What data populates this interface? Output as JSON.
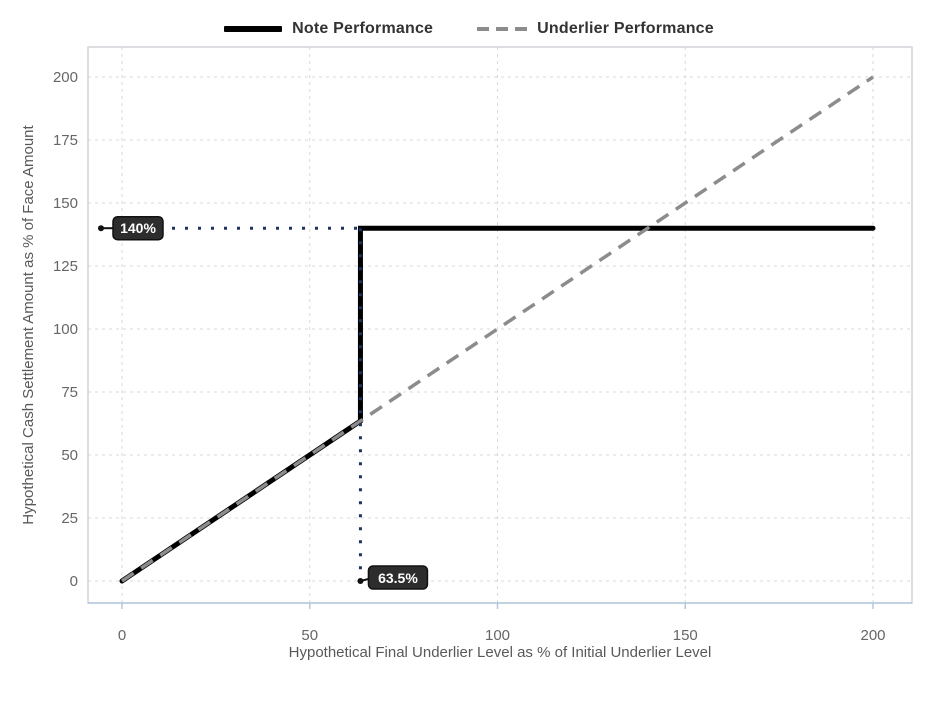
{
  "colors": {
    "note_line": "#000000",
    "underlier_line": "#8c8c8c",
    "guide_dotted": "#1f3260",
    "annotation_bg": "#2d2d2d",
    "annotation_border": "#111111",
    "annotation_text": "#ffffff",
    "grid": "#d9d9d9",
    "plot_border": "#c8cdd3",
    "axis_bottom": "#b4c7de",
    "tick_label": "#666666",
    "axis_title": "#595959",
    "legend_text": "#333333"
  },
  "chart_data": {
    "type": "line",
    "title": "",
    "xlabel": "Hypothetical Final Underlier Level as % of Initial Underlier Level",
    "ylabel": "Hypothetical Cash Settlement Amount as % of Face Amount",
    "xlim": [
      0,
      200
    ],
    "ylim": [
      0,
      200
    ],
    "xticks": [
      0,
      50,
      100,
      150,
      200
    ],
    "yticks": [
      0,
      25,
      50,
      75,
      100,
      125,
      150,
      175,
      200
    ],
    "grid": true,
    "legend_position": "top-center",
    "series": [
      {
        "name": "Note Performance",
        "style": "solid",
        "color": "#000000",
        "width": 5,
        "points": [
          [
            0,
            0
          ],
          [
            63.5,
            63.5
          ],
          [
            63.5,
            140
          ],
          [
            200,
            140
          ]
        ]
      },
      {
        "name": "Underlier Performance",
        "style": "dashed",
        "color": "#8c8c8c",
        "width": 3.5,
        "points": [
          [
            0,
            0
          ],
          [
            200,
            200
          ]
        ]
      }
    ],
    "annotations": [
      {
        "label": "140%",
        "axis": "y",
        "value": 140,
        "guide_to": 63.5
      },
      {
        "label": "63.5%",
        "axis": "x",
        "value": 63.5,
        "guide_from": 140
      }
    ]
  }
}
